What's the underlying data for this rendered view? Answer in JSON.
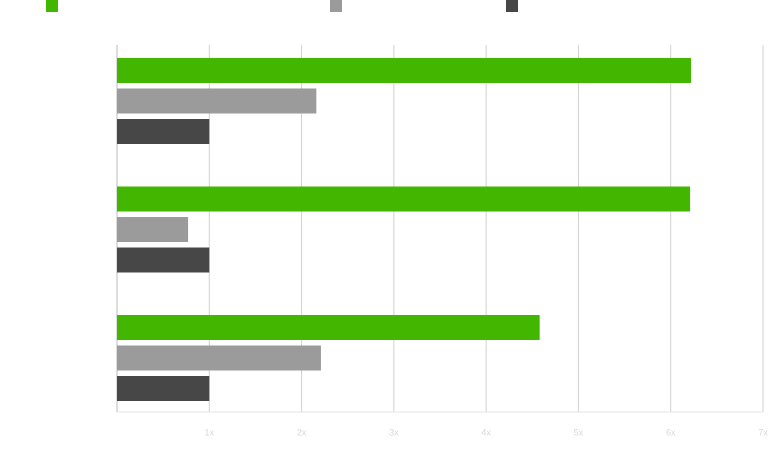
{
  "chart_data": {
    "type": "barh",
    "categories": [
      null,
      null,
      null
    ],
    "series": [
      {
        "color": "#43b700",
        "values": [
          6.22,
          6.21,
          4.58
        ]
      },
      {
        "color": "#9b9b9b",
        "values": [
          2.16,
          0.77,
          2.21
        ]
      },
      {
        "color": "#474747",
        "values": [
          1.0,
          1.0,
          1.0
        ]
      }
    ],
    "xlim": [
      0,
      7
    ],
    "xticks": [
      {
        "value": 1,
        "label": "1x"
      },
      {
        "value": 2,
        "label": "2x"
      },
      {
        "value": 3,
        "label": "3x"
      },
      {
        "value": 4,
        "label": "4x"
      },
      {
        "value": 5,
        "label": "5x"
      },
      {
        "value": 6,
        "label": "6x"
      },
      {
        "value": 7,
        "label": "7x"
      }
    ],
    "grid": true
  }
}
